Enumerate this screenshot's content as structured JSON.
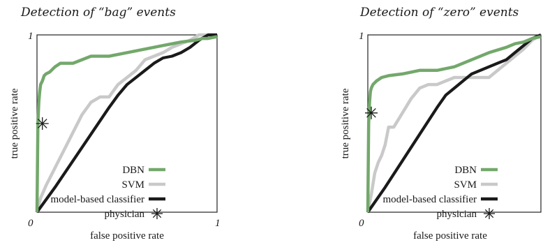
{
  "chart_data": [
    {
      "type": "line",
      "title": "Detection of “bag” events",
      "xlabel": "false positive rate",
      "ylabel": "true positive rate",
      "xlim": [
        0,
        1
      ],
      "ylim": [
        0,
        1
      ],
      "tick_labels": {
        "origin": "0",
        "x_max": "1",
        "y_max": "1"
      },
      "grid": false,
      "legend_position": "bottom-right",
      "series": [
        {
          "name": "DBN",
          "color": "#73a86b",
          "x": [
            0,
            0.005,
            0.01,
            0.015,
            0.02,
            0.03,
            0.04,
            0.05,
            0.07,
            0.1,
            0.13,
            0.2,
            0.3,
            0.4,
            0.5,
            0.6,
            0.7,
            0.8,
            0.88,
            0.92,
            0.95,
            1.0
          ],
          "y": [
            0,
            0.5,
            0.62,
            0.68,
            0.72,
            0.74,
            0.77,
            0.78,
            0.79,
            0.82,
            0.84,
            0.84,
            0.88,
            0.88,
            0.9,
            0.92,
            0.94,
            0.96,
            0.97,
            0.98,
            0.98,
            0.99
          ]
        },
        {
          "name": "SVM",
          "color": "#c9c9c9",
          "x": [
            0,
            0.02,
            0.05,
            0.1,
            0.15,
            0.2,
            0.25,
            0.3,
            0.35,
            0.4,
            0.45,
            0.5,
            0.55,
            0.6,
            0.7,
            0.75,
            0.8,
            0.85,
            0.9,
            0.95,
            1.0
          ],
          "y": [
            0,
            0.08,
            0.15,
            0.25,
            0.35,
            0.45,
            0.55,
            0.62,
            0.65,
            0.65,
            0.72,
            0.76,
            0.8,
            0.86,
            0.9,
            0.93,
            0.95,
            0.97,
            1.0,
            1.0,
            1.0
          ]
        },
        {
          "name": "model-based classifier",
          "color": "#1a1a1a",
          "x": [
            0,
            0.1,
            0.2,
            0.3,
            0.4,
            0.45,
            0.5,
            0.55,
            0.6,
            0.65,
            0.7,
            0.75,
            0.8,
            0.85,
            0.9,
            0.95,
            1.0
          ],
          "y": [
            0,
            0.14,
            0.29,
            0.44,
            0.59,
            0.66,
            0.72,
            0.76,
            0.8,
            0.84,
            0.87,
            0.88,
            0.9,
            0.93,
            0.97,
            1.0,
            1.0
          ]
        }
      ],
      "points": [
        {
          "name": "physician",
          "color": "#1a1a1a",
          "marker": "asterisk",
          "x": 0.03,
          "y": 0.5
        }
      ]
    },
    {
      "type": "line",
      "title": "Detection of “zero” events",
      "xlabel": "false positive rate",
      "ylabel": "true positive rate",
      "xlim": [
        0,
        1
      ],
      "ylim": [
        0,
        1
      ],
      "tick_labels": {
        "origin": "0",
        "x_max": "",
        "y_max": "1"
      },
      "grid": false,
      "legend_position": "bottom-right",
      "series": [
        {
          "name": "DBN",
          "color": "#73a86b",
          "x": [
            0,
            0.005,
            0.01,
            0.015,
            0.02,
            0.03,
            0.05,
            0.08,
            0.12,
            0.2,
            0.3,
            0.4,
            0.5,
            0.6,
            0.7,
            0.8,
            0.85,
            0.9,
            0.95,
            1.0
          ],
          "y": [
            0,
            0.5,
            0.62,
            0.68,
            0.7,
            0.72,
            0.74,
            0.76,
            0.77,
            0.78,
            0.8,
            0.8,
            0.82,
            0.86,
            0.9,
            0.93,
            0.95,
            0.96,
            0.98,
            0.99
          ]
        },
        {
          "name": "SVM",
          "color": "#c9c9c9",
          "x": [
            0,
            0.02,
            0.04,
            0.06,
            0.08,
            0.1,
            0.12,
            0.15,
            0.2,
            0.25,
            0.3,
            0.35,
            0.4,
            0.45,
            0.5,
            0.55,
            0.6,
            0.7,
            0.8,
            0.85,
            0.9,
            0.95,
            1.0
          ],
          "y": [
            0,
            0.1,
            0.22,
            0.28,
            0.32,
            0.38,
            0.48,
            0.48,
            0.56,
            0.64,
            0.7,
            0.72,
            0.72,
            0.74,
            0.76,
            0.76,
            0.76,
            0.76,
            0.84,
            0.88,
            0.92,
            0.97,
            1.0
          ]
        },
        {
          "name": "model-based classifier",
          "color": "#1a1a1a",
          "x": [
            0,
            0.1,
            0.2,
            0.3,
            0.4,
            0.45,
            0.5,
            0.55,
            0.6,
            0.65,
            0.7,
            0.75,
            0.8,
            0.85,
            0.9,
            0.95,
            1.0
          ],
          "y": [
            0,
            0.14,
            0.29,
            0.44,
            0.59,
            0.66,
            0.7,
            0.74,
            0.78,
            0.8,
            0.82,
            0.84,
            0.86,
            0.9,
            0.94,
            0.98,
            1.0
          ]
        }
      ],
      "points": [
        {
          "name": "physician",
          "color": "#1a1a1a",
          "marker": "asterisk",
          "x": 0.02,
          "y": 0.56
        }
      ]
    }
  ]
}
